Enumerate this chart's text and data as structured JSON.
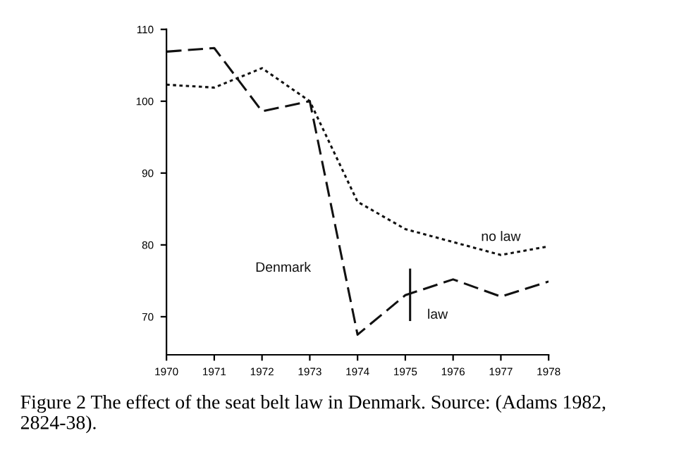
{
  "chart_data": {
    "type": "line",
    "x": [
      1970,
      1971,
      1972,
      1973,
      1974,
      1975,
      1976,
      1977,
      1978
    ],
    "series": [
      {
        "name": "Denmark",
        "color": "#111111",
        "line_style": "dashed",
        "values": [
          106.9,
          107.4,
          98.6,
          100,
          67.5,
          73.0,
          75.2,
          72.8,
          74.9
        ]
      },
      {
        "name": "no law",
        "color": "#111111",
        "line_style": "dotted",
        "values": [
          102.3,
          101.9,
          104.6,
          100,
          86.0,
          82.2,
          80.4,
          78.6,
          79.8
        ]
      },
      {
        "name": "law",
        "color": "#111111",
        "line_style": "solid",
        "x": [
          1975.1,
          1975.1
        ],
        "values": [
          69.4,
          76.7
        ]
      }
    ],
    "xlim": [
      1970,
      1978
    ],
    "xticks": [
      1970,
      1971,
      1972,
      1973,
      1974,
      1975,
      1976,
      1977,
      1978
    ],
    "ylim": [
      64.7,
      110
    ],
    "yticks": [
      70,
      80,
      90,
      100,
      110
    ],
    "grid": false,
    "legend": false,
    "marker": "none",
    "annotations": [
      "Figure 2 The effect of the seat belt law in Denmark. Source: (Adams 1982, 2824-38)."
    ]
  }
}
